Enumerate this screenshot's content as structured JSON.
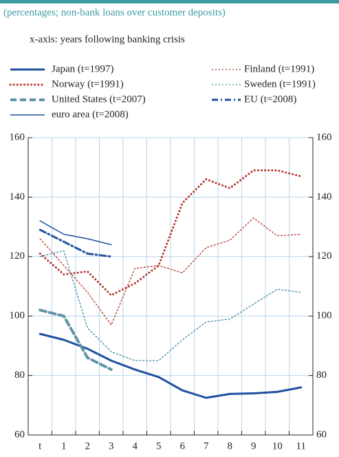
{
  "chart_data": {
    "type": "line",
    "subtitle": "(percentages; non-bank loans over customer deposits)",
    "note": "x-axis: years following banking crisis",
    "categories": [
      "t",
      "1",
      "2",
      "3",
      "4",
      "5",
      "6",
      "7",
      "8",
      "9",
      "10",
      "11"
    ],
    "series": [
      {
        "name": "Japan (t=1997)",
        "color": "#1f4fa0",
        "width": 3,
        "dash": "none",
        "values": [
          94,
          92,
          89,
          85,
          82,
          79.5,
          75,
          72.5,
          73.8,
          74,
          74.5,
          76
        ]
      },
      {
        "name": "Norway (t=1991)",
        "color": "#b5362c",
        "width": 3,
        "dash": "1,4",
        "values": [
          121,
          114,
          115,
          107,
          111,
          117,
          138,
          146,
          143,
          149,
          149,
          147
        ]
      },
      {
        "name": "United States (t=2007)",
        "color": "#5f93a6",
        "width": 4,
        "dash": "9,5",
        "values": [
          102,
          100,
          86,
          82,
          null,
          null,
          null,
          null,
          null,
          null,
          null,
          null
        ]
      },
      {
        "name": "euro area (t=2008)",
        "color": "#1f4fa0",
        "width": 1.5,
        "dash": "none",
        "values": [
          132,
          127.5,
          126,
          124,
          null,
          null,
          null,
          null,
          null,
          null,
          null,
          null
        ]
      },
      {
        "name": "Finland (t=1991)",
        "color": "#b5362c",
        "width": 1.3,
        "dash": "2,3",
        "values": [
          126,
          117,
          108,
          97,
          116,
          117,
          114.5,
          123,
          125.5,
          133,
          127,
          127.5
        ]
      },
      {
        "name": "Sweden (t=1991)",
        "color": "#3a8aa0",
        "width": 1.3,
        "dash": "2,3",
        "values": [
          120,
          122,
          96,
          88,
          85,
          85,
          92,
          98,
          99,
          104,
          109,
          108
        ]
      },
      {
        "name": "EU (t=2008)",
        "color": "#1f4fa0",
        "width": 3,
        "dash": "9,4,2,4",
        "values": [
          129,
          125,
          121,
          120,
          null,
          null,
          null,
          null,
          null,
          null,
          null,
          null
        ]
      }
    ],
    "ylim": [
      60,
      160
    ],
    "yticks": [
      60,
      80,
      100,
      120,
      140,
      160
    ],
    "grid": true
  }
}
